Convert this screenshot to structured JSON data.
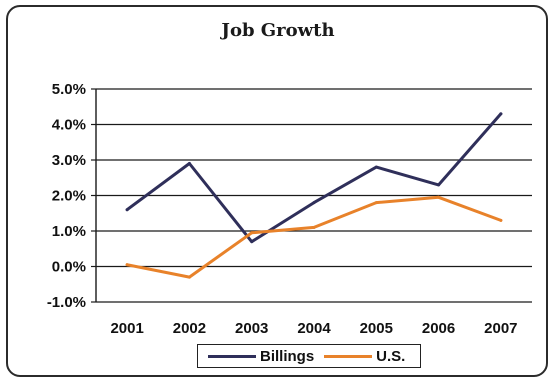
{
  "chart_data": {
    "type": "line",
    "title": "Job Growth",
    "xlabel": "",
    "ylabel": "",
    "categories": [
      "2001",
      "2002",
      "2003",
      "2004",
      "2005",
      "2006",
      "2007"
    ],
    "series": [
      {
        "name": "Billings",
        "color": "#2f2f5a",
        "values": [
          1.6,
          2.9,
          0.7,
          1.8,
          2.8,
          2.3,
          4.3
        ]
      },
      {
        "name": "U.S.",
        "color": "#e8822a",
        "values": [
          0.05,
          -0.3,
          0.95,
          1.1,
          1.8,
          1.95,
          1.3
        ]
      }
    ],
    "ylim": [
      -1.0,
      5.0
    ],
    "yticks": [
      "5.0%",
      "4.0%",
      "3.0%",
      "2.0%",
      "1.0%",
      "0.0%",
      "-1.0%"
    ],
    "ytick_values": [
      5,
      4,
      3,
      2,
      1,
      0,
      -1
    ],
    "grid": true,
    "legend_position": "bottom"
  }
}
